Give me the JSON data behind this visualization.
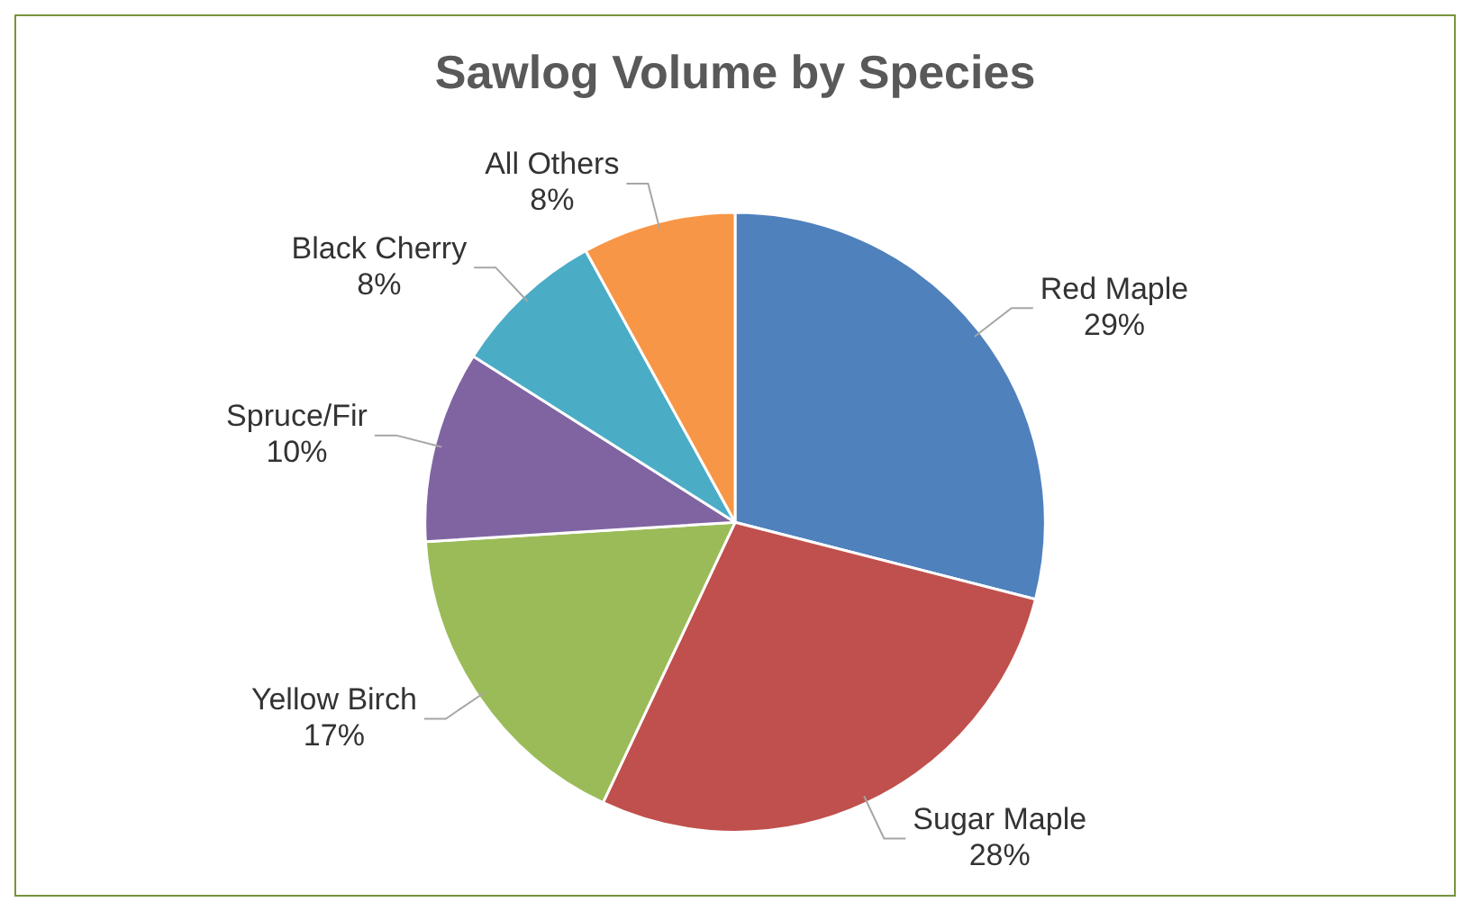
{
  "chart_data": {
    "type": "pie",
    "title": "Sawlog Volume by Species",
    "categories": [
      "Red Maple",
      "Sugar Maple",
      "Yellow Birch",
      "Spruce/Fir",
      "Black Cherry",
      "All Others"
    ],
    "values": [
      29,
      28,
      17,
      10,
      8,
      8
    ],
    "value_labels": [
      "29%",
      "28%",
      "17%",
      "10%",
      "8%",
      "8%"
    ],
    "colors": [
      "#4f81bd",
      "#c0504d",
      "#9bbb59",
      "#8064a2",
      "#4bacc6",
      "#f79646"
    ],
    "legend": false
  }
}
